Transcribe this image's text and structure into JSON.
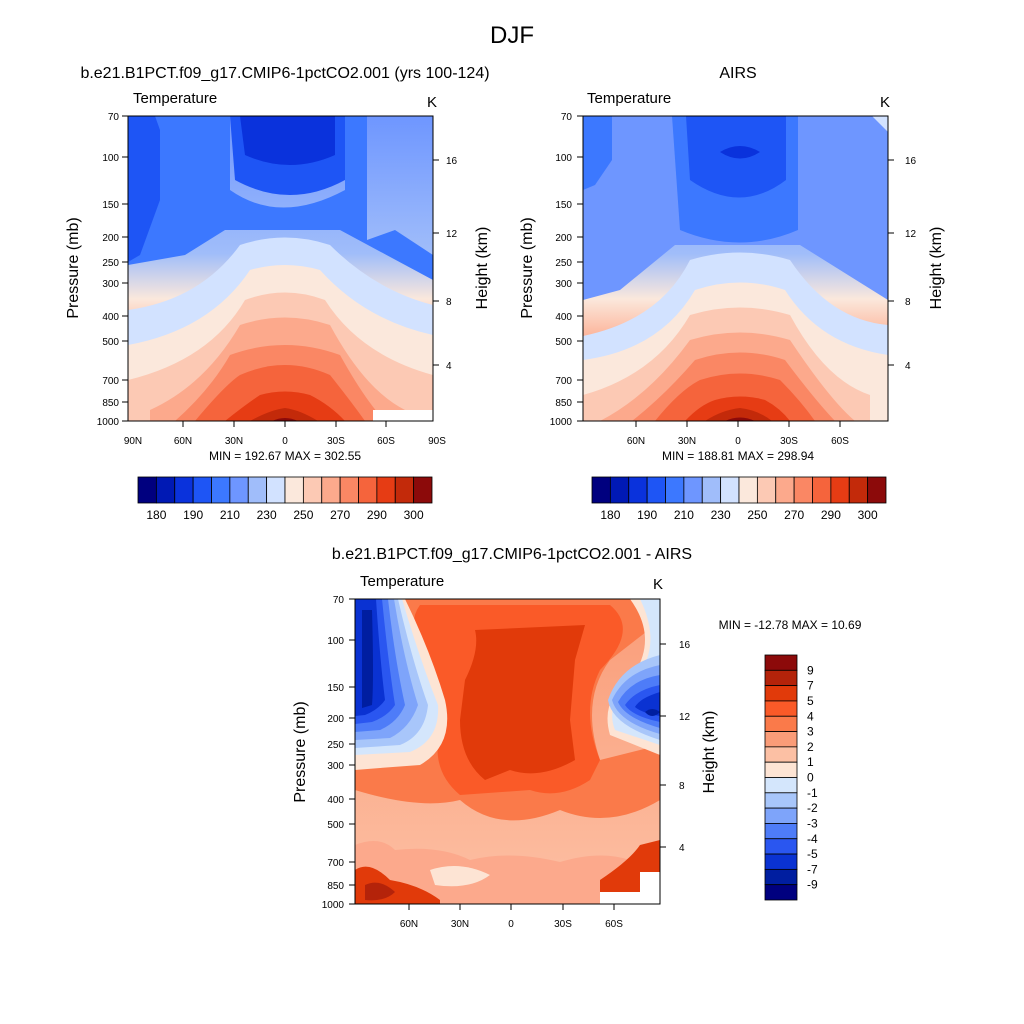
{
  "figure_title": "DJF",
  "chart_data": [
    {
      "type": "heatmap",
      "title": "b.e21.B1PCT.f09_g17.CMIP6-1pctCO2.001 (yrs 100-124)",
      "left_label": "Temperature",
      "right_label": "K",
      "ylabel": "Pressure (mb)",
      "ylabel_right": "Height (km)",
      "y_ticks": [
        "70",
        "100",
        "150",
        "200",
        "250",
        "300",
        "400",
        "500",
        "700",
        "850",
        "1000"
      ],
      "height_ticks": [
        "16",
        "12",
        "8",
        "4"
      ],
      "x_ticks": [
        "90N",
        "60N",
        "30N",
        "0",
        "30S",
        "60S",
        "90S"
      ],
      "stats": "MIN = 192.67  MAX = 302.55",
      "colorbar_labels": [
        "180",
        "190",
        "210",
        "230",
        "250",
        "270",
        "290",
        "300"
      ],
      "min": 192.67,
      "max": 302.55
    },
    {
      "type": "heatmap",
      "title": "AIRS",
      "left_label": "Temperature",
      "right_label": "K",
      "ylabel": "Pressure (mb)",
      "ylabel_right": "Height (km)",
      "y_ticks": [
        "70",
        "100",
        "150",
        "200",
        "250",
        "300",
        "400",
        "500",
        "700",
        "850",
        "1000"
      ],
      "height_ticks": [
        "16",
        "12",
        "8",
        "4"
      ],
      "x_ticks": [
        "60N",
        "30N",
        "0",
        "30S",
        "60S"
      ],
      "stats": "MIN = 188.81  MAX = 298.94",
      "colorbar_labels": [
        "180",
        "190",
        "210",
        "230",
        "250",
        "270",
        "290",
        "300"
      ],
      "min": 188.81,
      "max": 298.94
    },
    {
      "type": "heatmap",
      "title": "b.e21.B1PCT.f09_g17.CMIP6-1pctCO2.001 - AIRS",
      "left_label": "Temperature",
      "right_label": "K",
      "ylabel": "Pressure (mb)",
      "ylabel_right": "Height (km)",
      "y_ticks": [
        "70",
        "100",
        "150",
        "200",
        "250",
        "300",
        "400",
        "500",
        "700",
        "850",
        "1000"
      ],
      "height_ticks": [
        "16",
        "12",
        "8",
        "4"
      ],
      "x_ticks": [
        "60N",
        "30N",
        "0",
        "30S",
        "60S"
      ],
      "stats": "MIN = -12.78  MAX =  10.69",
      "colorbar_labels": [
        "9",
        "7",
        "5",
        "4",
        "3",
        "2",
        "1",
        "0",
        "-1",
        "-2",
        "-3",
        "-4",
        "-5",
        "-7",
        "-9"
      ],
      "min": -12.78,
      "max": 10.69
    }
  ],
  "palettes": {
    "absolute": [
      "#00007f",
      "#0019b4",
      "#0a32dc",
      "#1e55f5",
      "#3c78ff",
      "#6e96ff",
      "#a0bdfa",
      "#d2e2ff",
      "#fbe8dc",
      "#fcc9b4",
      "#fca98c",
      "#fa8764",
      "#f5643c",
      "#e63c14",
      "#c32a0a",
      "#8c0a0a"
    ],
    "difference": [
      "#8c0a0a",
      "#b4230a",
      "#e13a0a",
      "#fa5a28",
      "#fa7a4a",
      "#fa9c78",
      "#fcc0a4",
      "#fde4d4",
      "#d4e6fc",
      "#a8c6fa",
      "#7ea4fa",
      "#4e7cf8",
      "#2a56f0",
      "#0a32d2",
      "#001ea0",
      "#00007f"
    ]
  }
}
